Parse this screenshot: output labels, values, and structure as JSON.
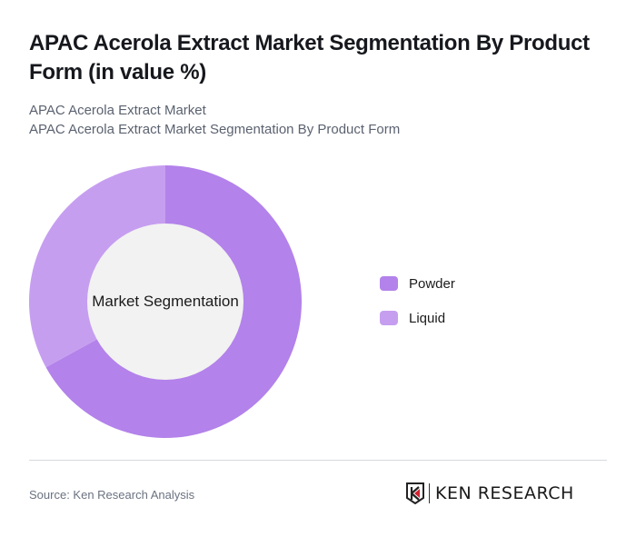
{
  "header": {
    "title": "APAC Acerola Extract Market Segmentation By Product Form (in value %)",
    "subtitle_line1": "APAC Acerola Extract Market",
    "subtitle_line2": "APAC Acerola Extract Market Segmentation By Product Form"
  },
  "chart": {
    "center_label": "Market Segmentation"
  },
  "legend": {
    "items": [
      {
        "label": "Powder",
        "color": "#b382ea"
      },
      {
        "label": "Liquid",
        "color": "#c69ef0"
      }
    ]
  },
  "footer": {
    "source": "Source: Ken Research Analysis",
    "logo_text": "KEN RESEARCH"
  },
  "chart_data": {
    "type": "pie",
    "subtype": "donut",
    "title": "APAC Acerola Extract Market Segmentation By Product Form (in value %)",
    "center_label": "Market Segmentation",
    "categories": [
      "Powder",
      "Liquid"
    ],
    "values": [
      67,
      33
    ],
    "colors": [
      "#b382ea",
      "#c69ef0"
    ],
    "legend_position": "right",
    "data_labels": false
  }
}
